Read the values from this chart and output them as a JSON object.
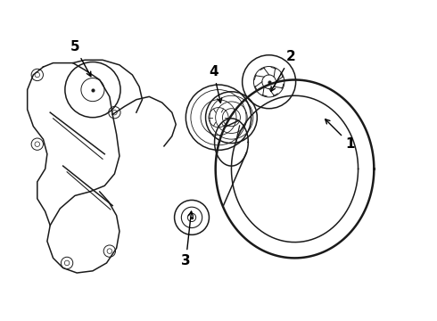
{
  "background_color": "#ffffff",
  "line_color": "#1a1a1a",
  "label_color": "#000000",
  "lw_main": 1.1,
  "lw_thick": 1.8
}
